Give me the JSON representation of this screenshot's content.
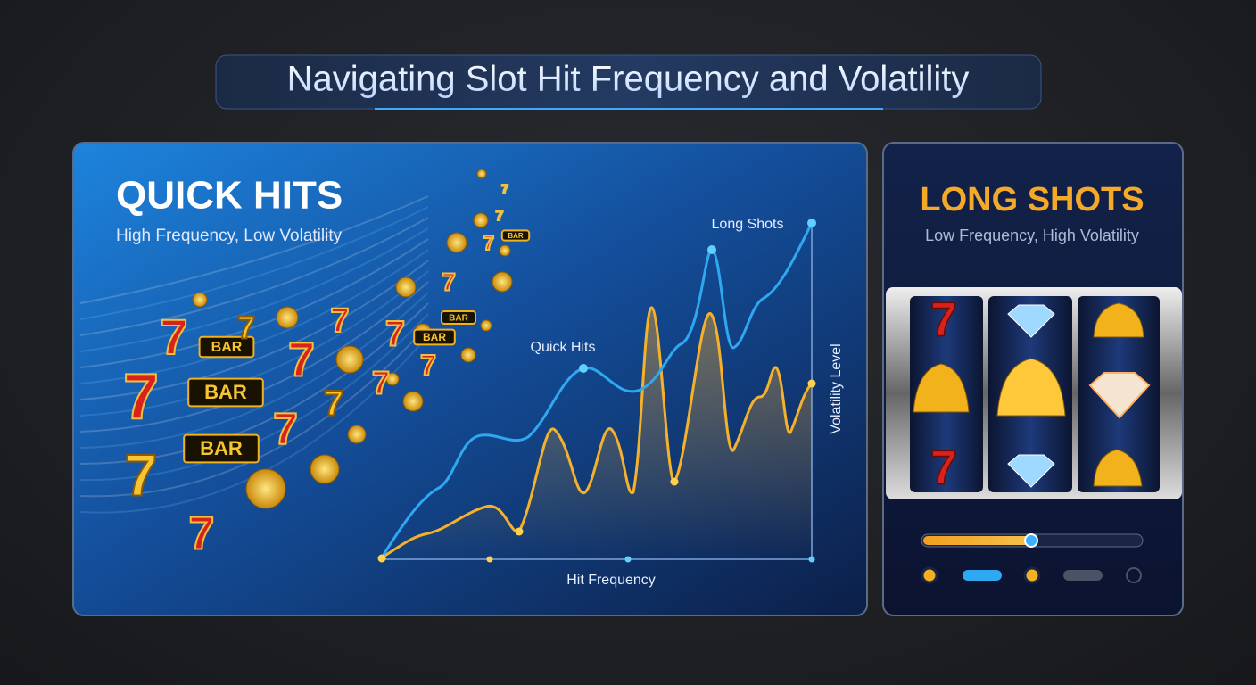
{
  "header": {
    "title": "Navigating Slot Hit Frequency and Volatility"
  },
  "quick_hits": {
    "title": "QUICK HITS",
    "subtitle": "High Frequency, Low Volatility",
    "symbols": [
      "7",
      "BAR",
      "7",
      "7",
      "BAR",
      "BAR",
      "7",
      "7",
      "7",
      "7",
      "7",
      "BAR",
      "7",
      "7",
      "7",
      "BAR",
      "7",
      "7",
      "BAR",
      "7",
      "7",
      "7"
    ]
  },
  "graph": {
    "long_shots_label": "Long Shots",
    "quick_hits_label": "Quick Hits",
    "y_axis_label": "Volatility Level",
    "x_axis_label": "Hit Frequency"
  },
  "long_shots": {
    "title": "LONG SHOTS",
    "subtitle": "Low Frequency, High Volatility",
    "reel_symbols": [
      "7",
      "7"
    ]
  }
}
